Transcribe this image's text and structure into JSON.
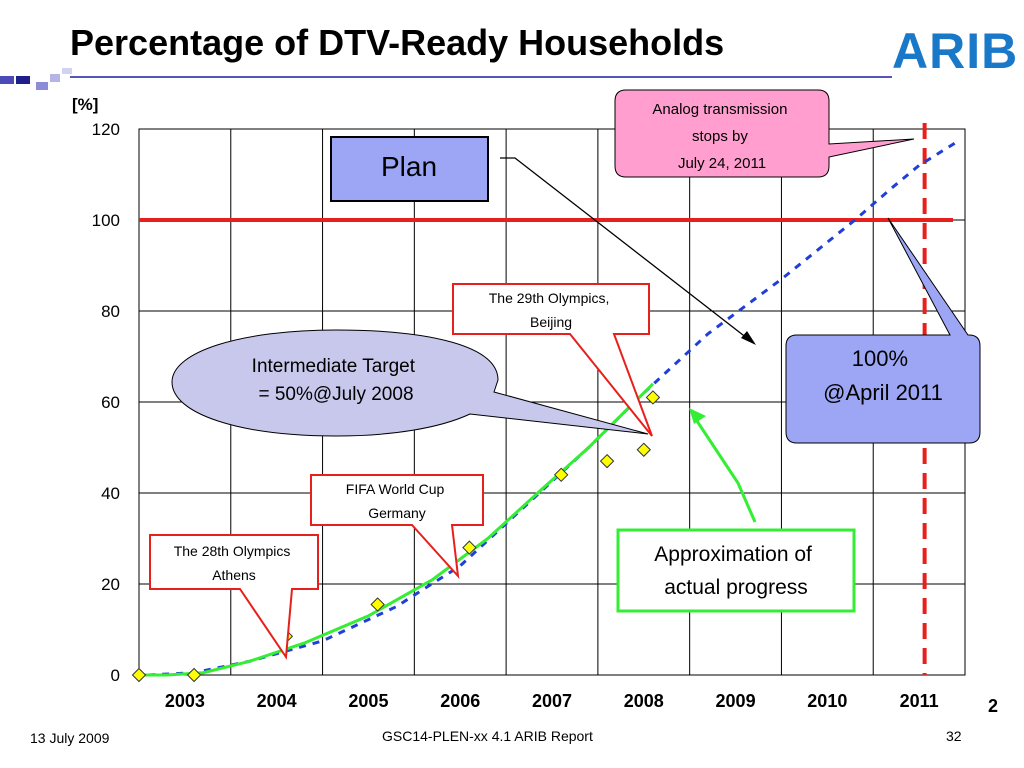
{
  "slide": {
    "title": "Percentage of DTV-Ready Households",
    "logo": "ARIB",
    "footer_date": "13 July 2009",
    "footer_center": "GSC14-PLEN-xx 4.1 ARIB Report",
    "page_number": "32",
    "edge_mark": "2"
  },
  "annotations": {
    "analog_stop": [
      "Analog transmission",
      "stops by",
      "July 24, 2011"
    ],
    "plan": "Plan",
    "beijing": [
      "The 29th Olympics,",
      "Beijing"
    ],
    "intermediate": [
      "Intermediate Target",
      "= 50%@July 2008"
    ],
    "target": [
      "100%",
      "@April 2011"
    ],
    "fifa": [
      "FIFA World Cup",
      "Germany"
    ],
    "athens": [
      "The 28th Olympics",
      "Athens"
    ],
    "approx": [
      "Approximation of",
      "actual progress"
    ]
  },
  "colors": {
    "target_line": "#e8201c",
    "plan_line": "#1f3fd8",
    "approx_line": "#33ee33",
    "marker_fill": "#ffff00",
    "plan_box_fill": "#9da6f5",
    "target_box_fill": "#9da6f5",
    "analog_box_fill": "#ff9ecf",
    "intermediate_fill": "#c8c8ec"
  },
  "chart_data": {
    "type": "line",
    "ylabel": "[%]",
    "ylim": [
      0,
      120
    ],
    "yticks": [
      0,
      20,
      40,
      60,
      80,
      100,
      120
    ],
    "xlim": [
      2003,
      2012
    ],
    "x_labels": [
      "2003",
      "2004",
      "2005",
      "2006",
      "2007",
      "2008",
      "2009",
      "2010",
      "2011"
    ],
    "grid": true,
    "target_value": 100,
    "analog_switch_off": 2011.56,
    "series": [
      {
        "name": "Plan",
        "style": "dashed",
        "x": [
          2003.1,
          2003.6,
          2004.2,
          2005.0,
          2005.8,
          2006.5,
          2007.2,
          2007.9,
          2008.5,
          2009.2,
          2010.0,
          2010.8,
          2011.2,
          2011.5,
          2011.9
        ],
        "y": [
          0,
          0.5,
          3,
          7.5,
          15,
          24,
          37,
          50,
          62,
          75,
          87,
          100,
          107,
          112,
          117
        ]
      },
      {
        "name": "Approximation of actual progress",
        "style": "solid",
        "x": [
          2003.0,
          2003.3,
          2003.7,
          2004.2,
          2004.8,
          2005.5,
          2006.2,
          2006.8,
          2007.4,
          2007.9,
          2008.3,
          2008.6
        ],
        "y": [
          0,
          0,
          0.5,
          3,
          7,
          13,
          21,
          30,
          41,
          50,
          58,
          64
        ]
      },
      {
        "name": "Actual",
        "style": "marker",
        "x": [
          2003.0,
          2003.6,
          2004.6,
          2005.6,
          2006.6,
          2007.6,
          2008.1,
          2008.5,
          2008.6
        ],
        "y": [
          0,
          0,
          8.5,
          15.5,
          28,
          44,
          47,
          49.5,
          61
        ]
      }
    ]
  }
}
